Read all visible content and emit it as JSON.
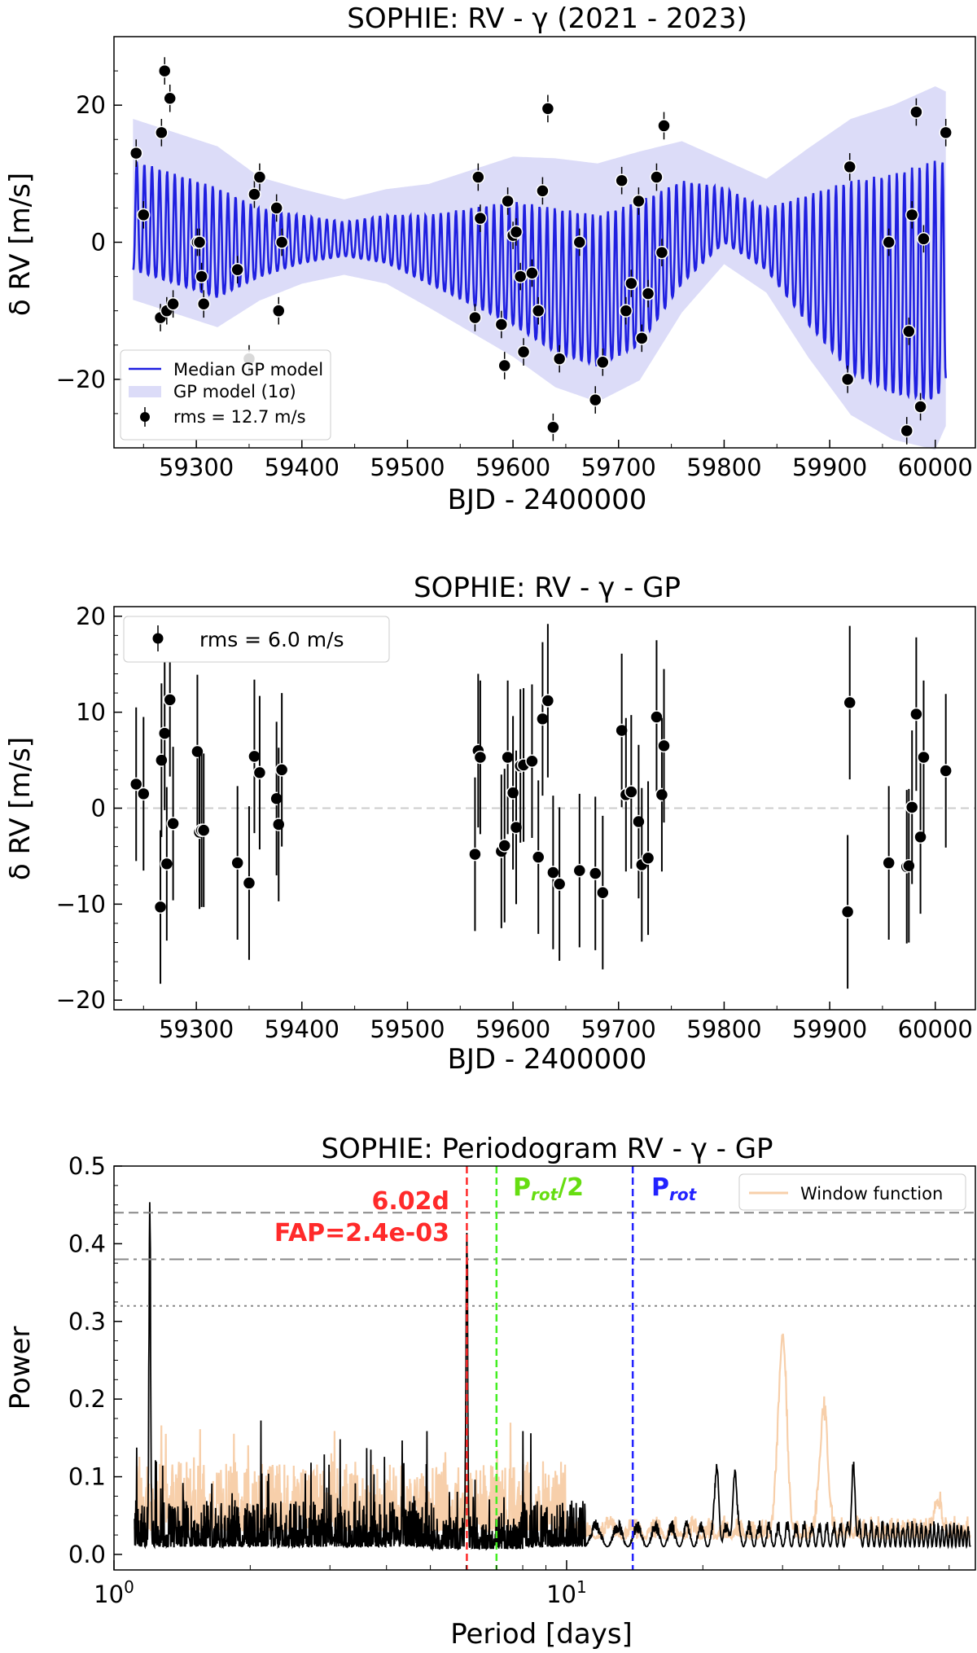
{
  "chart_data": [
    {
      "type": "line",
      "title": "SOPHIE: RV - γ (2021 - 2023)",
      "xlabel": "BJD - 2400000",
      "ylabel": "δ RV [m/s]",
      "xlim": [
        59222,
        60038
      ],
      "ylim": [
        -30,
        30
      ],
      "xticks": [
        59300,
        59400,
        59500,
        59600,
        59700,
        59800,
        59900,
        60000
      ],
      "yticks": [
        -20,
        0,
        20
      ],
      "legend_position": "lower-left",
      "legend": [
        "Median GP model",
        "GP model (1σ)",
        "rms = 12.7 m/s"
      ],
      "colors": {
        "model": "#1f1fe0",
        "band": "#dcdcf8",
        "points": "#000000"
      },
      "model_envelope": {
        "x": [
          59240,
          59280,
          59320,
          59360,
          59400,
          59440,
          59480,
          59520,
          59560,
          59600,
          59640,
          59680,
          59720,
          59760,
          59800,
          59840,
          59880,
          59920,
          59960,
          60000,
          60010
        ],
        "upper": [
          12,
          10,
          8,
          5,
          4,
          3,
          4,
          4,
          5,
          6,
          5,
          4,
          6,
          9,
          8,
          5,
          7,
          9,
          10,
          12,
          12
        ],
        "lower": [
          -4,
          -6,
          -8,
          -5,
          -3,
          -2,
          -3,
          -6,
          -9,
          -12,
          -16,
          -18,
          -15,
          -6,
          0,
          -4,
          -12,
          -19,
          -22,
          -23,
          -20
        ]
      },
      "points": {
        "x": [
          59243,
          59250,
          59266,
          59267,
          59270,
          59272,
          59275,
          59278,
          59301,
          59303,
          59305,
          59307,
          59339,
          59350,
          59355,
          59360,
          59376,
          59378,
          59381,
          59564,
          59567,
          59569,
          59589,
          59592,
          59595,
          59600,
          59603,
          59607,
          59610,
          59618,
          59624,
          59628,
          59633,
          59638,
          59644,
          59663,
          59678,
          59685,
          59703,
          59707,
          59712,
          59719,
          59722,
          59728,
          59736,
          59741,
          59743,
          59917,
          59919,
          59956,
          59973,
          59975,
          59978,
          59982,
          59986,
          59989,
          60010
        ],
        "y": [
          13,
          4,
          -11,
          16,
          25,
          -10,
          21,
          -9,
          0,
          0,
          -5,
          -9,
          -4,
          -17,
          7,
          9.5,
          5,
          -10,
          0,
          -11,
          9.5,
          3.5,
          -12,
          -18,
          6,
          1,
          1.5,
          -5,
          -16,
          -4.5,
          -10,
          7.5,
          19.5,
          -27,
          -17,
          0,
          -23,
          -17.5,
          9,
          -10,
          -6,
          6,
          -14,
          -7.5,
          9.5,
          -1.5,
          17,
          -20,
          11,
          0,
          -27.5,
          -13,
          4,
          19,
          -24,
          0.5,
          16
        ]
      }
    },
    {
      "type": "scatter",
      "title": "SOPHIE: RV - γ - GP",
      "xlabel": "BJD - 2400000",
      "ylabel": "δ RV [m/s]",
      "xlim": [
        59222,
        60038
      ],
      "ylim": [
        -21,
        21
      ],
      "xticks": [
        59300,
        59400,
        59500,
        59600,
        59700,
        59800,
        59900,
        60000
      ],
      "yticks": [
        -20,
        -10,
        0,
        10,
        20
      ],
      "legend_position": "top-left",
      "legend": [
        "rms = 6.0 m/s"
      ],
      "points": {
        "x": [
          59243,
          59250,
          59266,
          59267,
          59270,
          59272,
          59275,
          59278,
          59301,
          59303,
          59305,
          59307,
          59339,
          59350,
          59355,
          59360,
          59376,
          59378,
          59381,
          59564,
          59567,
          59569,
          59589,
          59592,
          59595,
          59600,
          59603,
          59607,
          59610,
          59618,
          59624,
          59628,
          59633,
          59638,
          59644,
          59663,
          59678,
          59685,
          59703,
          59707,
          59712,
          59719,
          59722,
          59728,
          59736,
          59741,
          59743,
          59917,
          59919,
          59956,
          59973,
          59975,
          59978,
          59982,
          59986,
          59989,
          60010
        ],
        "y": [
          2.5,
          1.5,
          -10.3,
          5,
          7.8,
          -5.8,
          11.3,
          -1.6,
          5.9,
          -2.5,
          -2.3,
          -2.3,
          -5.7,
          -7.8,
          5.4,
          3.7,
          1,
          -1.7,
          4,
          -4.8,
          6,
          5.3,
          -4.5,
          -3.9,
          5.3,
          1.6,
          -2,
          4.4,
          4.5,
          4.9,
          -5.1,
          9.3,
          11.2,
          -6.7,
          -7.9,
          -6.5,
          -6.8,
          -8.8,
          8.1,
          1.4,
          1.7,
          -1.4,
          -5.9,
          -5.2,
          9.5,
          1.4,
          6.5,
          -10.8,
          11,
          -5.7,
          -6.1,
          -6,
          0.1,
          9.8,
          -3,
          5.3,
          3.9
        ],
        "yerr": 8
      }
    },
    {
      "type": "line",
      "title": "SOPHIE: Periodogram RV - γ - GP",
      "xlabel": "Period [days]",
      "ylabel": "Power",
      "xscale": "log",
      "xlim": [
        1,
        80
      ],
      "ylim": [
        -0.02,
        0.5
      ],
      "xtick_labels": [
        "10^0",
        "10^1"
      ],
      "yticks": [
        0.0,
        0.1,
        0.2,
        0.3,
        0.4,
        0.5
      ],
      "legend_position": "top-right",
      "legend": [
        "Window function"
      ],
      "fap_levels": [
        0.44,
        0.38,
        0.32
      ],
      "vlines": [
        {
          "x": 6.02,
          "color": "#ff2a2a",
          "label": "6.02d"
        },
        {
          "x": 7.0,
          "color": "#44ee22",
          "label": "Prot/2"
        },
        {
          "x": 14.0,
          "color": "#2222ff",
          "label": "Prot"
        }
      ],
      "annotations": {
        "peak": "6.02d",
        "fap": "FAP=2.4e-03",
        "prot_half": "P",
        "prot_half_sub": "rot",
        "prot_half_suffix": "/2",
        "prot": "P",
        "prot_sub": "rot"
      },
      "peaks": [
        {
          "period": 1.2,
          "power": 0.415
        },
        {
          "period": 6.02,
          "power": 0.405
        },
        {
          "period": 21.5,
          "power": 0.11
        },
        {
          "period": 23.5,
          "power": 0.105
        },
        {
          "period": 43,
          "power": 0.1
        }
      ],
      "window_peaks": [
        {
          "period": 30,
          "power": 0.285
        },
        {
          "period": 37,
          "power": 0.185
        },
        {
          "period": 66,
          "power": 0.07
        }
      ],
      "colors": {
        "periodogram": "#000000",
        "window": "#f7cfaa",
        "fap": "#888888"
      }
    }
  ]
}
